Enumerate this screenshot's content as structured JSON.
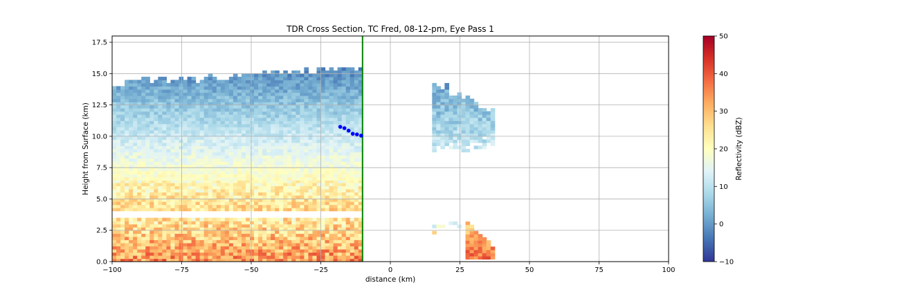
{
  "chart_data": {
    "type": "heatmap",
    "title": "TDR Cross Section, TC Fred, 08-12-pm, Eye Pass 1",
    "xlabel": "distance (km)",
    "ylabel": "Height from Surface (km)",
    "xlim": [
      -100,
      100
    ],
    "ylim": [
      0,
      18
    ],
    "xticks": [
      -100,
      -75,
      -50,
      -25,
      0,
      25,
      50,
      75,
      100
    ],
    "xtick_labels": [
      "−100",
      "−75",
      "−50",
      "−25",
      "0",
      "25",
      "50",
      "75",
      "100"
    ],
    "yticks": [
      0,
      2.5,
      5,
      7.5,
      10,
      12.5,
      15,
      17.5
    ],
    "ytick_labels": [
      "0.0",
      "2.5",
      "5.0",
      "7.5",
      "10.0",
      "12.5",
      "15.0",
      "17.5"
    ],
    "grid": true,
    "colorbar": {
      "label": "Reflectivity (dBZ)",
      "colormap": "RdYlBu_r",
      "range": [
        -10,
        50
      ],
      "ticks": [
        -10,
        0,
        10,
        20,
        30,
        40,
        50
      ],
      "tick_labels": [
        "−10",
        "0",
        "10",
        "20",
        "30",
        "40",
        "50"
      ]
    },
    "vertical_line": {
      "x": -10,
      "color": "#008000"
    },
    "points": {
      "color": "#0000ff",
      "x": [
        -18,
        -16.5,
        -15,
        -13.5,
        -12,
        -10.5
      ],
      "y": [
        10.75,
        10.65,
        10.45,
        10.2,
        10.15,
        10.05
      ]
    },
    "regions": [
      {
        "desc": "main rain band lower (2.5-3.4 km)",
        "x": [
          -100,
          -10
        ],
        "y": [
          0,
          3.4
        ],
        "dbz_top": 24,
        "dbz_bottom": 34,
        "dbz_variation": 8
      },
      {
        "desc": "main echo mid layer",
        "x": [
          -100,
          -10
        ],
        "y": [
          3.8,
          6.5
        ],
        "dbz_top": 20,
        "dbz_bottom": 27,
        "dbz_variation": 6
      },
      {
        "desc": "main echo upper layer",
        "x": [
          -100,
          -10
        ],
        "y": [
          6.5,
          15.3
        ],
        "dbz_top": -2,
        "dbz_bottom": 20,
        "dbz_variation": 3
      },
      {
        "desc": "eyewall east upper",
        "x": [
          15,
          37
        ],
        "y": [
          8.5,
          14.5
        ],
        "dbz_top": 0,
        "dbz_bottom": 12,
        "dbz_variation": 4
      },
      {
        "desc": "eyewall east lower",
        "x": [
          27,
          37
        ],
        "y": [
          0.2,
          3.2
        ],
        "dbz_top": 28,
        "dbz_bottom": 38,
        "dbz_variation": 5
      },
      {
        "desc": "scattered low echoes",
        "x": [
          15,
          25
        ],
        "y": [
          2.2,
          3.2
        ],
        "dbz_top": 5,
        "dbz_bottom": 22,
        "dbz_variation": 6
      }
    ],
    "colormap_stops": [
      "#313695",
      "#4575b4",
      "#74add1",
      "#abd9e9",
      "#e0f3f8",
      "#ffffbf",
      "#fee090",
      "#fdae61",
      "#f46d43",
      "#d73027",
      "#a50026"
    ]
  }
}
